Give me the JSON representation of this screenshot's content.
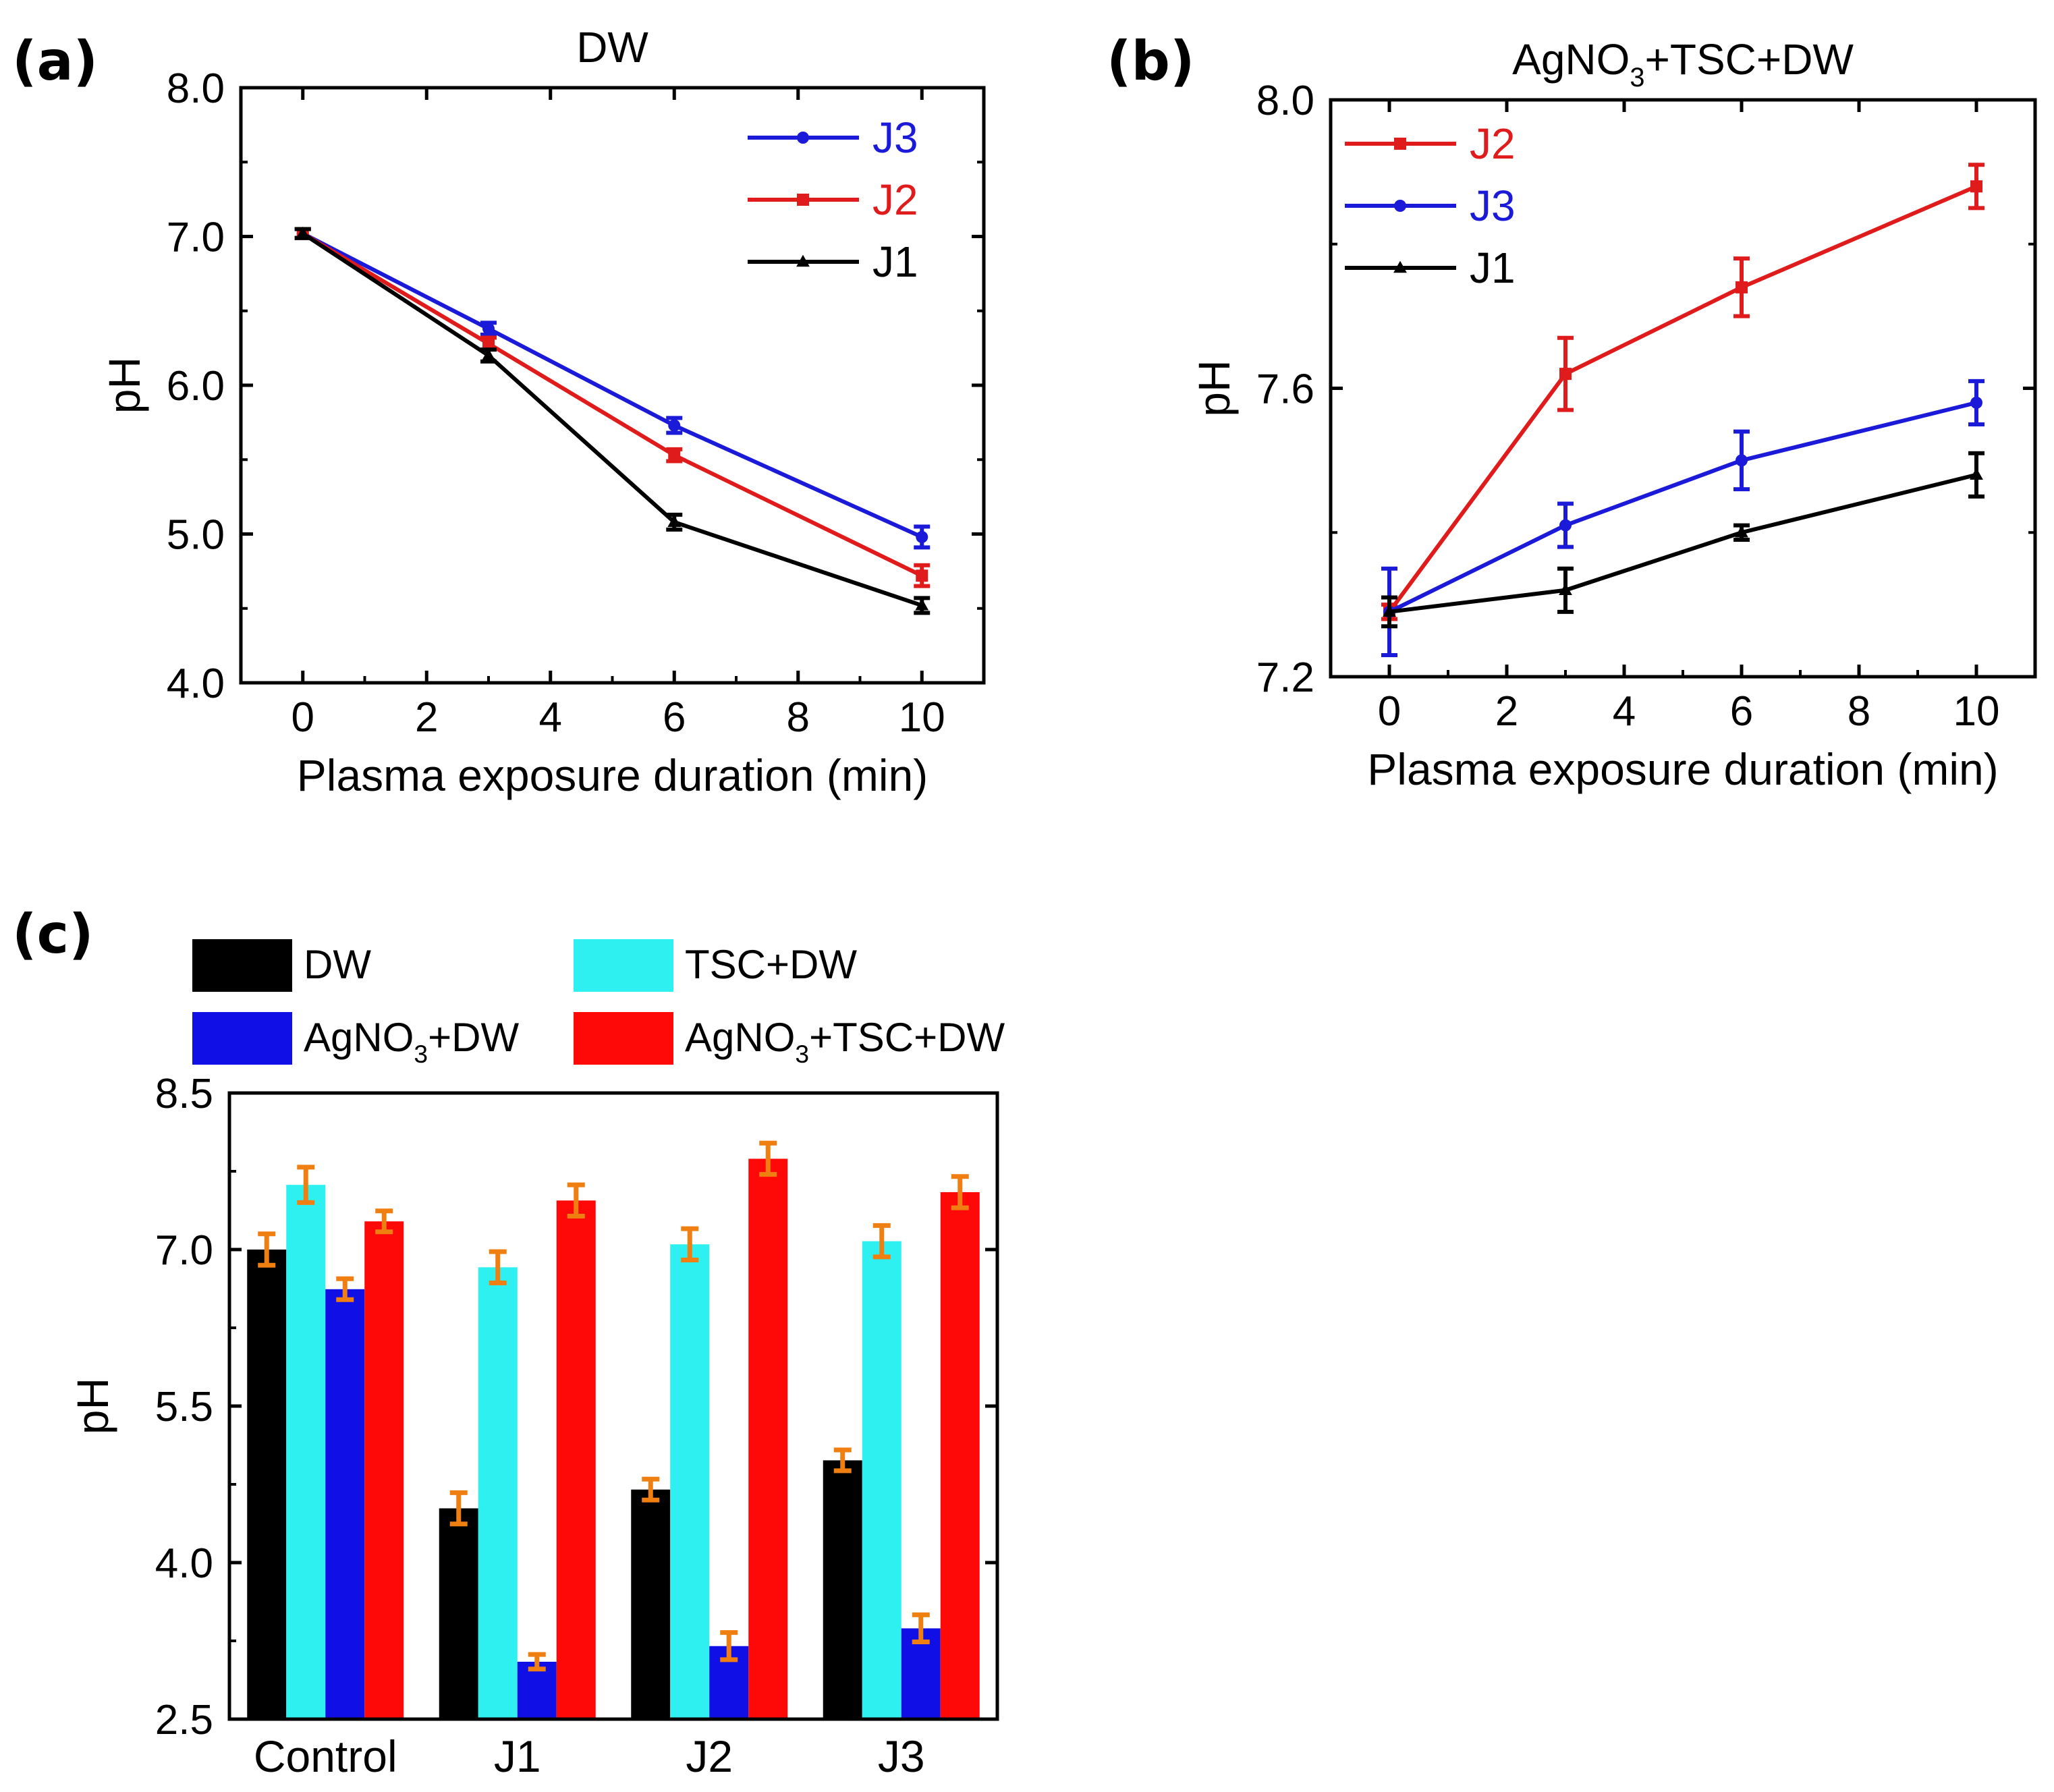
{
  "chart_data": [
    {
      "panel": "(a)",
      "type": "line",
      "title": "DW",
      "xlabel": "Plasma exposure duration (min)",
      "ylabel": "pH",
      "xlim": [
        -1,
        11
      ],
      "ylim": [
        4.0,
        8.0
      ],
      "xticks": [
        "0",
        "2",
        "4",
        "6",
        "8",
        "10"
      ],
      "yticks": [
        "4.0",
        "5.0",
        "6.0",
        "7.0",
        "8.0"
      ],
      "legend_position": "top-right",
      "x": [
        0,
        3,
        6,
        10
      ],
      "series": [
        {
          "name": "J3",
          "color": "#1a1ad8",
          "marker": "circle",
          "values": [
            7.02,
            6.38,
            5.73,
            4.98
          ],
          "errors": [
            0.03,
            0.04,
            0.05,
            0.07
          ]
        },
        {
          "name": "J2",
          "color": "#e01b1b",
          "marker": "square",
          "values": [
            7.02,
            6.28,
            5.53,
            4.72
          ],
          "errors": [
            0.03,
            0.04,
            0.04,
            0.07
          ]
        },
        {
          "name": "J1",
          "color": "#000000",
          "marker": "triangle",
          "values": [
            7.02,
            6.2,
            5.08,
            4.52
          ],
          "errors": [
            0.03,
            0.04,
            0.05,
            0.05
          ]
        }
      ]
    },
    {
      "panel": "(b)",
      "type": "line",
      "title": "AgNO3+TSC+DW",
      "title_parts": {
        "a": "AgNO",
        "sub": "3",
        "b": "+TSC+DW"
      },
      "xlabel": "Plasma exposure duration (min)",
      "ylabel": "pH",
      "xlim": [
        -1,
        11
      ],
      "ylim": [
        7.2,
        8.0
      ],
      "xticks": [
        "0",
        "2",
        "4",
        "6",
        "8",
        "10"
      ],
      "yticks": [
        "7.2",
        "7.6",
        "8.0"
      ],
      "legend_position": "top-left",
      "x": [
        0,
        3,
        6,
        10
      ],
      "series": [
        {
          "name": "J2",
          "color": "#e01b1b",
          "marker": "square",
          "values": [
            7.29,
            7.62,
            7.74,
            7.88
          ],
          "errors": [
            0.01,
            0.05,
            0.04,
            0.03
          ]
        },
        {
          "name": "J3",
          "color": "#1a1ad8",
          "marker": "circle",
          "values": [
            7.29,
            7.41,
            7.5,
            7.58
          ],
          "errors": [
            0.06,
            0.03,
            0.04,
            0.03
          ]
        },
        {
          "name": "J1",
          "color": "#000000",
          "marker": "triangle",
          "values": [
            7.29,
            7.32,
            7.4,
            7.48
          ],
          "errors": [
            0.02,
            0.03,
            0.01,
            0.03
          ]
        }
      ]
    },
    {
      "panel": "(c)",
      "type": "bar",
      "title": "",
      "xlabel": "",
      "ylabel": "pH",
      "ylim": [
        2.5,
        8.5
      ],
      "yticks": [
        "2.5",
        "4.0",
        "5.5",
        "7.0",
        "8.5"
      ],
      "categories": [
        "Control",
        "J1",
        "J2",
        "J3"
      ],
      "error_color": "#f07f12",
      "legend_position": "top",
      "series": [
        {
          "name": "DW",
          "color": "#000000",
          "values": [
            7.0,
            4.52,
            4.7,
            4.98
          ],
          "errors": [
            0.15,
            0.15,
            0.1,
            0.1
          ]
        },
        {
          "name": "TSC+DW",
          "color": "#2ff0f0",
          "values": [
            7.62,
            6.83,
            7.05,
            7.08
          ],
          "errors": [
            0.17,
            0.15,
            0.15,
            0.15
          ]
        },
        {
          "name": "AgNO3+DW",
          "color": "#1010e6",
          "values": [
            6.62,
            3.05,
            3.2,
            3.37
          ],
          "errors": [
            0.1,
            0.07,
            0.13,
            0.13
          ]
        },
        {
          "name": "AgNO3+TSC+DW",
          "color": "#ff0808",
          "values": [
            7.27,
            7.47,
            7.87,
            7.55
          ],
          "errors": [
            0.1,
            0.15,
            0.15,
            0.15
          ]
        }
      ],
      "legend_labels": [
        {
          "a": "DW",
          "sub": "",
          "b": ""
        },
        {
          "a": "TSC+DW",
          "sub": "",
          "b": ""
        },
        {
          "a": "AgNO",
          "sub": "3",
          "b": "+DW"
        },
        {
          "a": "AgNO",
          "sub": "3",
          "b": "+TSC+DW"
        }
      ]
    }
  ]
}
